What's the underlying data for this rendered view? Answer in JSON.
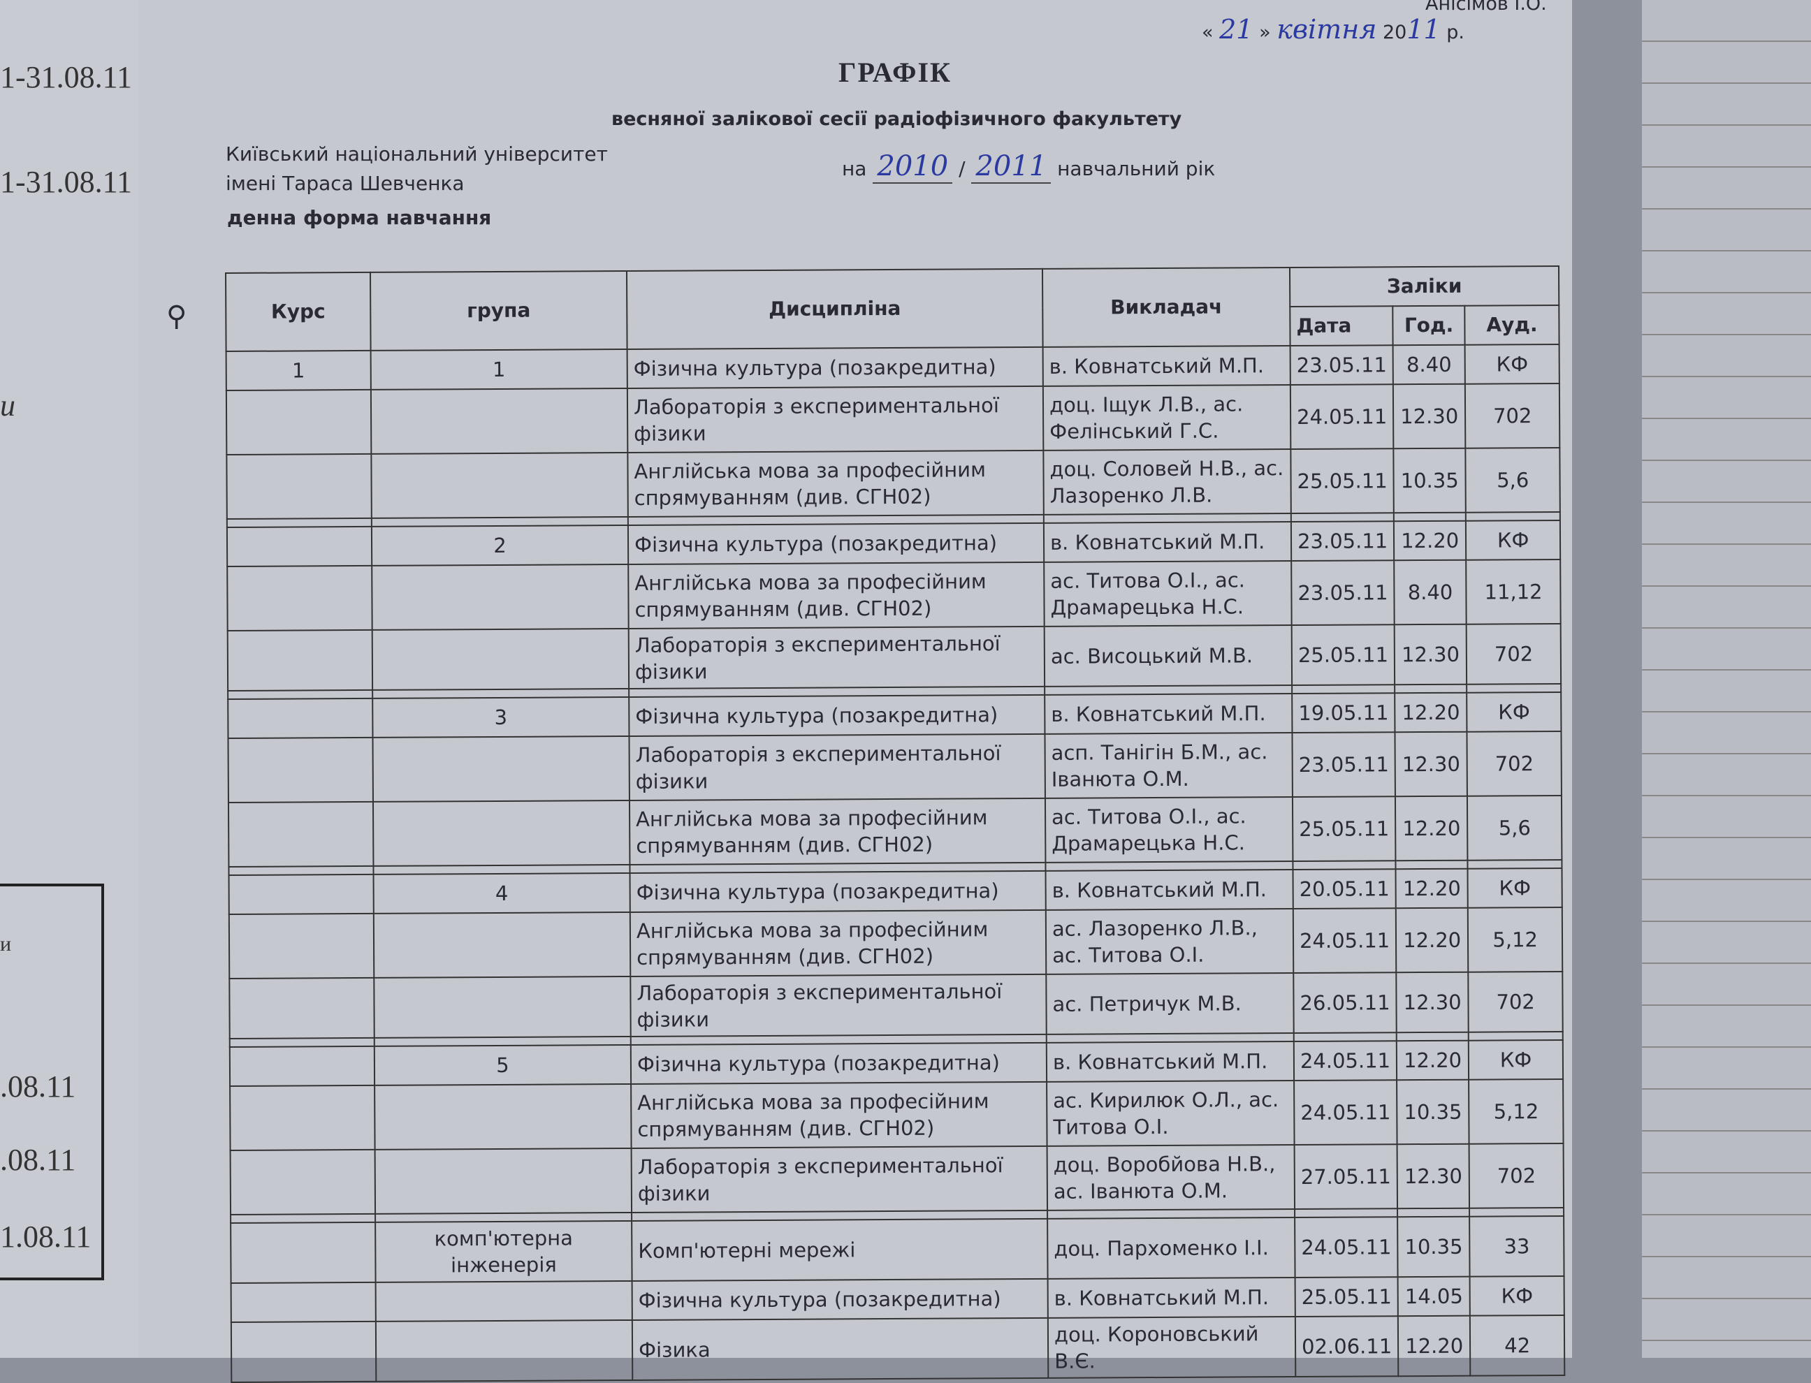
{
  "left_sheet": {
    "fragments": [
      "1-31.08.11",
      "1-31.08.11",
      "и",
      "и",
      ".08.11",
      ".08.11",
      "1.08.11"
    ]
  },
  "header": {
    "approver": "Анісімов І.О.",
    "date_prefix": "«",
    "date_day": "21",
    "date_mid": "»",
    "date_month": "квітня",
    "date_year_prefix": "20",
    "date_year_hw": "11",
    "date_suffix": "р.",
    "title": "ГРАФІК",
    "subtitle": "весняної залікової сесії радіофізичного факультету",
    "university_line1": "Київський національний університет",
    "university_line2": "імені Тараса Шевченка",
    "year_prefix": "на",
    "year_from": "2010",
    "year_sep": "/",
    "year_to": "2011",
    "year_suffix": "навчальний рік",
    "study_form": "денна форма навчання"
  },
  "table": {
    "headers": {
      "course": "Курс",
      "group": "група",
      "discipline": "Дисципліна",
      "teacher": "Викладач",
      "credits": "Заліки",
      "date": "Дата",
      "time": "Год.",
      "room": "Ауд."
    },
    "rows": [
      {
        "course": "1",
        "group": "1",
        "discipline": "Фізична культура (позакредитна)",
        "teacher": "в. Ковнатський М.П.",
        "date": "23.05.11",
        "time": "8.40",
        "room": "КФ"
      },
      {
        "course": "",
        "group": "",
        "discipline": "Лабораторія з експериментальної фізики",
        "teacher": "доц. Іщук Л.В., ас. Фелінський Г.С.",
        "date": "24.05.11",
        "time": "12.30",
        "room": "702"
      },
      {
        "course": "",
        "group": "",
        "discipline": "Англійська мова за професійним спрямуванням (див. СГН02)",
        "teacher": "доц. Соловей Н.В., ас. Лазоренко Л.В.",
        "date": "25.05.11",
        "time": "10.35",
        "room": "5,6"
      },
      {
        "gap": true
      },
      {
        "course": "",
        "group": "2",
        "discipline": "Фізична культура (позакредитна)",
        "teacher": "в. Ковнатський М.П.",
        "date": "23.05.11",
        "time": "12.20",
        "room": "КФ"
      },
      {
        "course": "",
        "group": "",
        "discipline": "Англійська мова за професійним спрямуванням (див. СГН02)",
        "teacher": "ас. Титова О.І., ас. Драмарецька Н.С.",
        "date": "23.05.11",
        "time": "8.40",
        "room": "11,12"
      },
      {
        "course": "",
        "group": "",
        "discipline": "Лабораторія з експериментальної фізики",
        "teacher": "ас. Висоцький М.В.",
        "date": "25.05.11",
        "time": "12.30",
        "room": "702"
      },
      {
        "gap": true
      },
      {
        "course": "",
        "group": "3",
        "discipline": "Фізична культура (позакредитна)",
        "teacher": "в. Ковнатський М.П.",
        "date": "19.05.11",
        "time": "12.20",
        "room": "КФ"
      },
      {
        "course": "",
        "group": "",
        "discipline": "Лабораторія з експериментальної фізики",
        "teacher": "асп. Танігін Б.М., ас. Іванюта О.М.",
        "date": "23.05.11",
        "time": "12.30",
        "room": "702"
      },
      {
        "course": "",
        "group": "",
        "discipline": "Англійська мова за професійним спрямуванням (див. СГН02)",
        "teacher": "ас. Титова О.І., ас. Драмарецька Н.С.",
        "date": "25.05.11",
        "time": "12.20",
        "room": "5,6"
      },
      {
        "gap": true
      },
      {
        "course": "",
        "group": "4",
        "discipline": "Фізична культура (позакредитна)",
        "teacher": "в. Ковнатський М.П.",
        "date": "20.05.11",
        "time": "12.20",
        "room": "КФ"
      },
      {
        "course": "",
        "group": "",
        "discipline": "Англійська мова за професійним спрямуванням (див. СГН02)",
        "teacher": "ас. Лазоренко Л.В., ас. Титова О.І.",
        "date": "24.05.11",
        "time": "12.20",
        "room": "5,12"
      },
      {
        "course": "",
        "group": "",
        "discipline": "Лабораторія з експериментальної фізики",
        "teacher": "ас. Петричук М.В.",
        "date": "26.05.11",
        "time": "12.30",
        "room": "702"
      },
      {
        "gap": true
      },
      {
        "course": "",
        "group": "5",
        "discipline": "Фізична культура (позакредитна)",
        "teacher": "в. Ковнатський М.П.",
        "date": "24.05.11",
        "time": "12.20",
        "room": "КФ"
      },
      {
        "course": "",
        "group": "",
        "discipline": "Англійська мова за професійним спрямуванням (див. СГН02)",
        "teacher": "ас. Кирилюк О.Л., ас. Титова О.І.",
        "date": "24.05.11",
        "time": "10.35",
        "room": "5,12"
      },
      {
        "course": "",
        "group": "",
        "discipline": "Лабораторія з експериментальної фізики",
        "teacher": "доц. Воробйова Н.В., ас. Іванюта О.М.",
        "date": "27.05.11",
        "time": "12.30",
        "room": "702"
      },
      {
        "gap": true
      },
      {
        "course": "",
        "group": "комп'ютерна інженерія",
        "discipline": "Комп'ютерні мережі",
        "teacher": "доц. Пархоменко І.І.",
        "date": "24.05.11",
        "time": "10.35",
        "room": "33"
      },
      {
        "course": "",
        "group": "",
        "discipline": "Фізична культура (позакредитна)",
        "teacher": "в. Ковнатський М.П.",
        "date": "25.05.11",
        "time": "14.05",
        "room": "КФ"
      },
      {
        "course": "",
        "group": "",
        "discipline": "Фізика",
        "teacher": "доц. Короновський В.Є.",
        "date": "02.06.11",
        "time": "12.20",
        "room": "42"
      }
    ]
  }
}
